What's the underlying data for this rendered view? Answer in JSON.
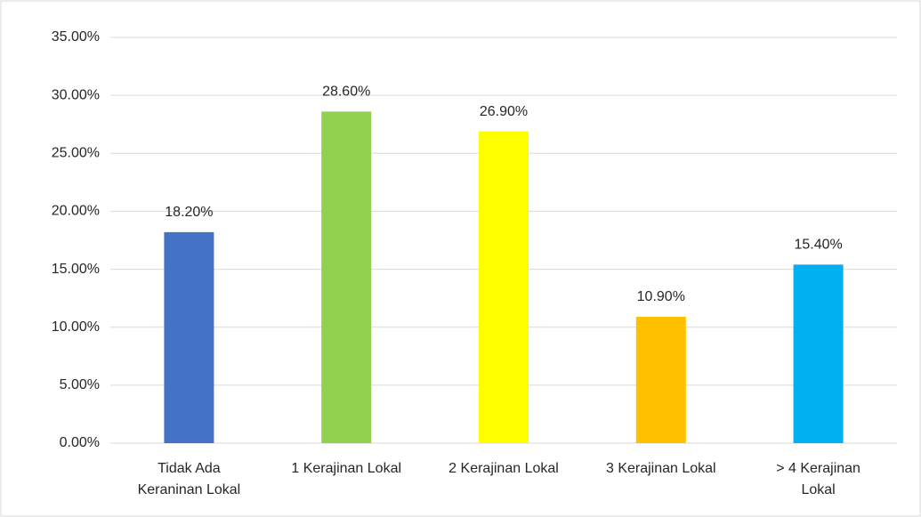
{
  "chart_data": {
    "type": "bar",
    "categories": [
      [
        "Tidak Ada",
        "Keraninan Lokal"
      ],
      [
        "1 Kerajinan Lokal"
      ],
      [
        "2 Kerajinan Lokal"
      ],
      [
        "3 Kerajinan Lokal"
      ],
      [
        "> 4 Kerajinan",
        "Lokal"
      ]
    ],
    "values": [
      18.2,
      28.6,
      26.9,
      10.9,
      15.4
    ],
    "value_labels": [
      "18.20%",
      "28.60%",
      "26.90%",
      "10.90%",
      "15.40%"
    ],
    "colors": [
      "#4472c4",
      "#92d050",
      "#ffff00",
      "#ffc000",
      "#00b0f0"
    ],
    "ylim": [
      0,
      35
    ],
    "yticks": [
      {
        "value": 0,
        "label": "0.00%"
      },
      {
        "value": 5,
        "label": "5.00%"
      },
      {
        "value": 10,
        "label": "10.00%"
      },
      {
        "value": 15,
        "label": "15.00%"
      },
      {
        "value": 20,
        "label": "20.00%"
      },
      {
        "value": 25,
        "label": "25.00%"
      },
      {
        "value": 30,
        "label": "30.00%"
      },
      {
        "value": 35,
        "label": "35.00%"
      }
    ],
    "grid": true
  }
}
